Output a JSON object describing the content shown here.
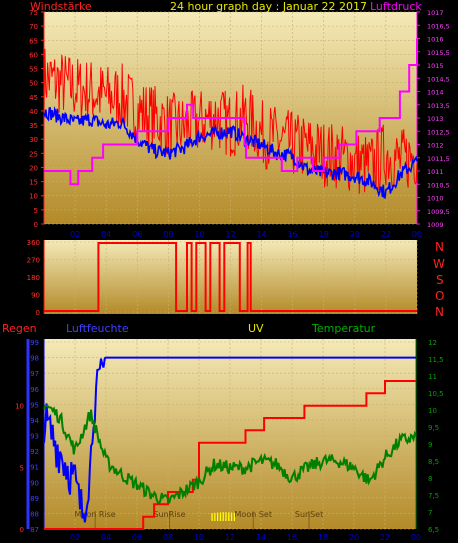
{
  "header": {
    "left_label": "Windstärke",
    "title": "24 hour graph day : Januar 22 2017",
    "right_label": "Luftdruck"
  },
  "middle": {
    "compass_letters": [
      "N",
      "W",
      "S",
      "O",
      "N"
    ]
  },
  "bottom_header": {
    "rain": "Regen",
    "humidity": "Luftfeuchte",
    "uv": "UV",
    "temperature": "Temperatur"
  },
  "events": [
    {
      "label": "Moon Rise",
      "hour": 3.3
    },
    {
      "label": "SunRise",
      "hour": 8.1
    },
    {
      "label": "Moon Set",
      "hour": 13.5
    },
    {
      "label": "SunSet",
      "hour": 17.1
    }
  ],
  "colors": {
    "title": "#e8e800",
    "wind_label": "#ff2020",
    "pressure_label": "#ff00ff",
    "panel_top": "#f4eab8",
    "panel_bottom": "#b38a28",
    "wind_speed": "#ff0000",
    "wind_avg": "#0000ff",
    "pressure": "#ff00ff",
    "direction": "#ff0000",
    "rain": "#ff0000",
    "humidity": "#0000ff",
    "temperature": "#008000",
    "uv": "#ffff00"
  },
  "chart_data": [
    {
      "type": "line",
      "name": "wind-pressure",
      "x_ticks": [
        "02",
        "04",
        "06",
        "08",
        "10",
        "12",
        "14",
        "16",
        "18",
        "20",
        "22",
        "00"
      ],
      "left_axis": {
        "label": "Windstärke",
        "ylim": [
          0,
          75
        ],
        "ticks": [
          0,
          5,
          10,
          15,
          20,
          25,
          30,
          35,
          40,
          45,
          50,
          55,
          60,
          65,
          70,
          75
        ]
      },
      "right_axis": {
        "label": "Luftdruck",
        "ylim": [
          1009,
          1017
        ],
        "ticks": [
          "1009",
          "1009,5",
          "1010",
          "1010,5",
          "1011",
          "1011,5",
          "1012",
          "1012,5",
          "1013",
          "1013,5",
          "1014",
          "1014,5",
          "1015",
          "1015,5",
          "1016",
          "1016,5",
          "1017"
        ]
      },
      "series": [
        {
          "role": "wind_gust",
          "axis": "left",
          "x": [
            0,
            1,
            2,
            3,
            4,
            5,
            6,
            7,
            8,
            9,
            10,
            11,
            12,
            13,
            14,
            15,
            16,
            17,
            18,
            19,
            20,
            21,
            22,
            23,
            24
          ],
          "values": [
            52,
            50,
            48,
            47,
            45,
            45,
            40,
            38,
            35,
            34,
            36,
            38,
            35,
            38,
            32,
            30,
            28,
            27,
            25,
            24,
            22,
            20,
            25,
            22,
            25
          ]
        },
        {
          "role": "wind_avg",
          "axis": "left",
          "x": [
            0,
            1,
            2,
            3,
            4,
            5,
            6,
            7,
            8,
            9,
            10,
            11,
            12,
            13,
            14,
            15,
            16,
            17,
            18,
            19,
            20,
            21,
            22,
            23,
            24
          ],
          "values": [
            40,
            38,
            36,
            37,
            35,
            36,
            30,
            26,
            25,
            27,
            31,
            32,
            33,
            30,
            28,
            25,
            24,
            19,
            18,
            18,
            17,
            15,
            11,
            18,
            22
          ]
        },
        {
          "role": "pressure_step",
          "axis": "right",
          "x": [
            0,
            1.7,
            2.2,
            3.1,
            3.8,
            6.0,
            8.0,
            9.2,
            9.6,
            12.9,
            13.0,
            15.3,
            16.3,
            17.3,
            18.0,
            19.0,
            20.1,
            21.6,
            22.9,
            23.5,
            24
          ],
          "values": [
            1011,
            1010.5,
            1011,
            1011.5,
            1012,
            1012.5,
            1013,
            1013.5,
            1013,
            1012,
            1011.5,
            1011,
            1011.5,
            1011,
            1011.5,
            1012,
            1012.5,
            1013,
            1014,
            1015,
            1016
          ]
        }
      ]
    },
    {
      "type": "line",
      "name": "wind-direction",
      "x_ticks": [
        "02",
        "04",
        "06",
        "08",
        "10",
        "12",
        "14",
        "16",
        "18",
        "20",
        "22",
        "00"
      ],
      "ylim": [
        0,
        360
      ],
      "y_ticks": [
        0,
        90,
        180,
        270,
        360
      ],
      "series": [
        {
          "role": "direction",
          "x": [
            0,
            3.5,
            3.5,
            8.5,
            8.5,
            9.2,
            9.2,
            9.5,
            9.5,
            9.8,
            9.8,
            10.4,
            10.4,
            10.7,
            10.7,
            11.3,
            11.3,
            11.6,
            11.6,
            12.6,
            12.6,
            13.1,
            13.1,
            13.3,
            13.3,
            24
          ],
          "values": [
            5,
            5,
            355,
            355,
            5,
            5,
            355,
            355,
            5,
            5,
            355,
            355,
            5,
            5,
            355,
            355,
            5,
            5,
            355,
            355,
            5,
            5,
            355,
            355,
            5,
            5
          ]
        }
      ]
    },
    {
      "type": "line",
      "name": "rain-humidity-uv-temperature",
      "x_ticks": [
        "02",
        "04",
        "06",
        "08",
        "10",
        "12",
        "14",
        "16",
        "18",
        "20",
        "22",
        "00"
      ],
      "rain_axis": {
        "label": "Regen",
        "ylim": [
          0,
          15
        ],
        "ticks": [
          0,
          5,
          10
        ]
      },
      "humidity_axis": {
        "label": "Luftfeuchte",
        "ylim": [
          87,
          99
        ],
        "ticks": [
          87,
          88,
          89,
          90,
          91,
          92,
          93,
          94,
          95,
          96,
          97,
          98,
          99
        ]
      },
      "temperature_axis": {
        "label": "Temperatur",
        "ylim": [
          6.5,
          12
        ],
        "ticks": [
          "6,5",
          "7",
          "7,5",
          "8",
          "8,5",
          "9",
          "9,5",
          "10",
          "10,5",
          "11",
          "11,5",
          "12"
        ]
      },
      "series": [
        {
          "role": "rain",
          "x": [
            0,
            6.4,
            6.4,
            7.1,
            7.1,
            8.0,
            8.0,
            9.6,
            9.6,
            10.0,
            10.0,
            13.0,
            13.0,
            14.2,
            14.2,
            16.8,
            16.8,
            20.8,
            20.8,
            22.0,
            22.0,
            24
          ],
          "values": [
            0,
            0,
            1,
            1,
            2,
            2,
            3,
            3,
            4,
            4,
            7,
            7,
            8,
            8,
            9,
            9,
            10,
            10,
            11,
            11,
            12,
            12
          ]
        },
        {
          "role": "humidity",
          "x": [
            0,
            0.5,
            1.0,
            1.5,
            2.0,
            2.2,
            2.5,
            3.0,
            3.2,
            3.5,
            3.8,
            4.0,
            21.5,
            21.5,
            24
          ],
          "values": [
            94,
            93,
            92,
            91,
            90,
            89,
            88,
            91,
            95,
            96,
            97,
            98,
            98,
            98,
            98
          ]
        },
        {
          "role": "temperature",
          "x": [
            0,
            1,
            2,
            3,
            4,
            5,
            6,
            7,
            8,
            9,
            10,
            11,
            12,
            13,
            14,
            15,
            16,
            17,
            18,
            19,
            20,
            21,
            22,
            23,
            24
          ],
          "values": [
            10.2,
            9.8,
            8.8,
            9.9,
            8.5,
            8.1,
            7.8,
            7.5,
            7.3,
            7.6,
            7.9,
            8.4,
            8.3,
            8.3,
            8.5,
            8.4,
            8.0,
            8.3,
            8.5,
            8.5,
            8.3,
            7.9,
            8.6,
            9.1,
            9.2
          ]
        },
        {
          "role": "uv",
          "x": [
            10.8,
            11.6,
            12.4
          ],
          "values": [
            0.2,
            0.3,
            0.2
          ]
        }
      ]
    }
  ]
}
